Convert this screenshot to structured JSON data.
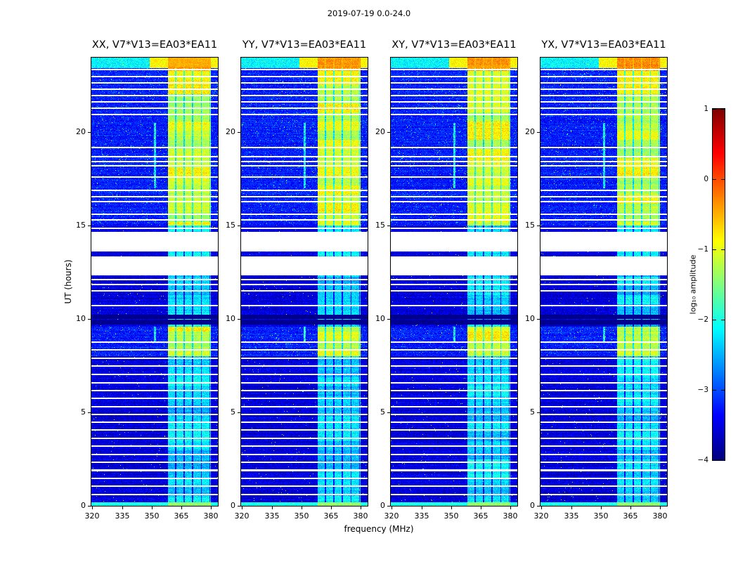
{
  "chart_data": {
    "type": "heatmap",
    "title": "2019-07-19 0.0-24.0",
    "xlabel": "frequency (MHz)",
    "ylabel": "UT (hours)",
    "xlim": [
      319.5,
      383.5
    ],
    "ylim": [
      0,
      24
    ],
    "x_ticks": [
      320,
      335,
      350,
      365,
      380
    ],
    "y_ticks": [
      0,
      5,
      10,
      15,
      20
    ],
    "colormap": "jet",
    "grid": false,
    "panels": [
      {
        "title": "XX, V7*V13=EA03*EA11"
      },
      {
        "title": "YY, V7*V13=EA03*EA11"
      },
      {
        "title": "XY, V7*V13=EA03*EA11"
      },
      {
        "title": "YX, V7*V13=EA03*EA11"
      }
    ],
    "colorbar": {
      "label": "log₁₀ amplitude",
      "ticks": [
        1,
        0,
        -1,
        -2,
        -3,
        -4
      ],
      "range": [
        -4,
        1
      ],
      "position": "right"
    },
    "features": {
      "background_level": -3.55,
      "rfi_band_mhz": [
        358.2,
        380.0
      ],
      "rfi_channel_width_mhz": 4.3,
      "strong_band_hours": [
        [
          8.0,
          9.6
        ],
        [
          15.0,
          23.3
        ]
      ],
      "very_strong_hours": [
        [
          23.3,
          24.0
        ]
      ],
      "top_wideband_hours": [
        23.45,
        24.0
      ],
      "moderate_band_level": -2.3,
      "strong_band_level": -1.1,
      "very_strong_level": -0.5,
      "data_gap_hours": [
        [
          12.34,
          13.36
        ],
        [
          13.62,
          14.67
        ]
      ],
      "thin_gap_hours": [
        23.35,
        23.0,
        22.66,
        22.32,
        21.98,
        21.64,
        21.3,
        20.96,
        19.2,
        18.7,
        18.45,
        18.2,
        17.6,
        16.9,
        16.55,
        16.3,
        15.6,
        15.3,
        14.85,
        12.1,
        11.85,
        11.5,
        10.72,
        8.75,
        8.35,
        7.9,
        7.48,
        7.05,
        6.6,
        6.18,
        5.75,
        5.32,
        4.9,
        4.48,
        4.05,
        3.62,
        3.2,
        2.76,
        2.33,
        1.9,
        1.47,
        1.04,
        0.6
      ],
      "dark_row_hours": [
        [
          9.72,
          9.95
        ],
        [
          10.02,
          10.25
        ]
      ],
      "narrowband_streak_mhz": 351.8,
      "streak_hours": [
        [
          8.8,
          9.6
        ],
        [
          17.0,
          20.5
        ]
      ],
      "bright_bottom_hours": [
        0,
        0.18
      ]
    }
  }
}
